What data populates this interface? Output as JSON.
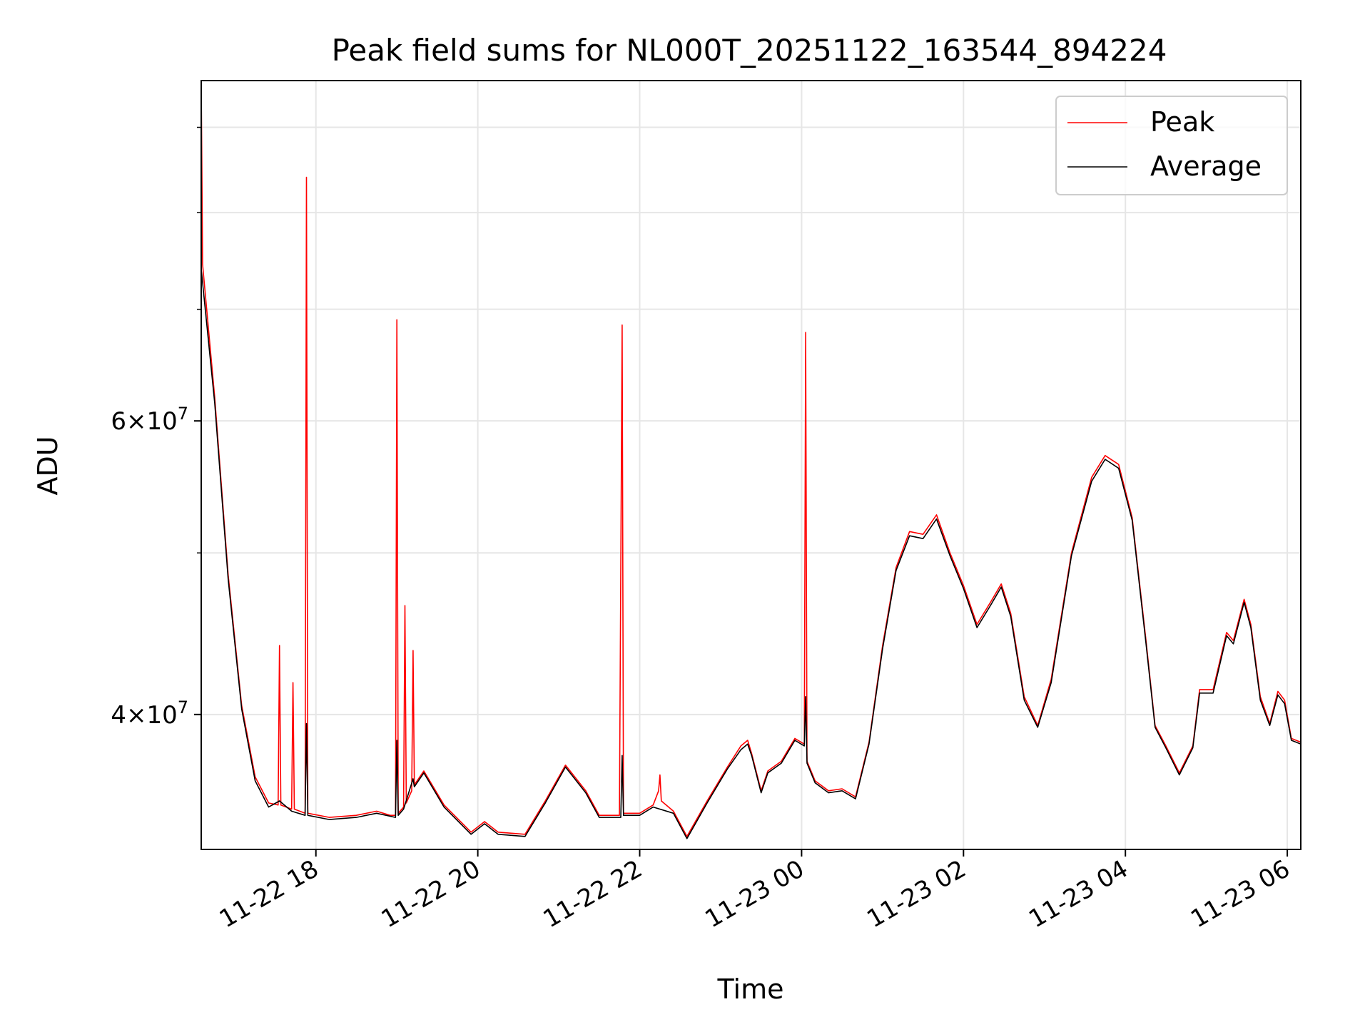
{
  "chart_data": {
    "type": "line",
    "title": "Peak field sums for NL000T_20251122_163544_894224",
    "xlabel": "Time",
    "ylabel": "ADU",
    "y_scale": "log",
    "ylim": [
      33200000,
      96000000
    ],
    "y_major_ticks": [
      {
        "value": 40000000,
        "mantissa": "4",
        "exponent": "7"
      },
      {
        "value": 60000000,
        "mantissa": "6",
        "exponent": "7"
      }
    ],
    "y_minor_ticks": [
      30000000,
      50000000,
      70000000,
      80000000,
      90000000
    ],
    "xlim": [
      "2025-11-22 16:35",
      "2025-11-23 06:10"
    ],
    "x_ticks": [
      {
        "value": "2025-11-22 18:00",
        "label": "11-22 18"
      },
      {
        "value": "2025-11-22 20:00",
        "label": "11-22 20"
      },
      {
        "value": "2025-11-22 22:00",
        "label": "11-22 22"
      },
      {
        "value": "2025-11-23 00:00",
        "label": "11-23 00"
      },
      {
        "value": "2025-11-23 02:00",
        "label": "11-23 02"
      },
      {
        "value": "2025-11-23 04:00",
        "label": "11-23 04"
      },
      {
        "value": "2025-11-23 06:00",
        "label": "11-23 06"
      }
    ],
    "grid": true,
    "legend_position": "top-right",
    "series": [
      {
        "name": "Peak",
        "color": "#ff0000",
        "points": [
          [
            "2025-11-22 16:35",
            96000000
          ],
          [
            "2025-11-22 16:36",
            74500000
          ],
          [
            "2025-11-22 16:45",
            62000000
          ],
          [
            "2025-11-22 16:55",
            48500000
          ],
          [
            "2025-11-22 17:05",
            40500000
          ],
          [
            "2025-11-22 17:15",
            36700000
          ],
          [
            "2025-11-22 17:25",
            35400000
          ],
          [
            "2025-11-22 17:32",
            35300000
          ],
          [
            "2025-11-22 17:33",
            44000000
          ],
          [
            "2025-11-22 17:34",
            35300000
          ],
          [
            "2025-11-22 17:42",
            35100000
          ],
          [
            "2025-11-22 17:43",
            41800000
          ],
          [
            "2025-11-22 17:44",
            35100000
          ],
          [
            "2025-11-22 17:52",
            34900000
          ],
          [
            "2025-11-22 17:53",
            84000000
          ],
          [
            "2025-11-22 17:54",
            34900000
          ],
          [
            "2025-11-22 18:10",
            34700000
          ],
          [
            "2025-11-22 18:30",
            34800000
          ],
          [
            "2025-11-22 18:45",
            35000000
          ],
          [
            "2025-11-22 18:55",
            34800000
          ],
          [
            "2025-11-22 18:59",
            34800000
          ],
          [
            "2025-11-22 19:00",
            69000000
          ],
          [
            "2025-11-22 19:01",
            34900000
          ],
          [
            "2025-11-22 19:05",
            35200000
          ],
          [
            "2025-11-22 19:06",
            46500000
          ],
          [
            "2025-11-22 19:07",
            35400000
          ],
          [
            "2025-11-22 19:11",
            36000000
          ],
          [
            "2025-11-22 19:12",
            43700000
          ],
          [
            "2025-11-22 19:13",
            36300000
          ],
          [
            "2025-11-22 19:20",
            37000000
          ],
          [
            "2025-11-22 19:35",
            35300000
          ],
          [
            "2025-11-22 19:55",
            34000000
          ],
          [
            "2025-11-22 20:05",
            34500000
          ],
          [
            "2025-11-22 20:15",
            34000000
          ],
          [
            "2025-11-22 20:35",
            33900000
          ],
          [
            "2025-11-22 20:50",
            35500000
          ],
          [
            "2025-11-22 21:05",
            37300000
          ],
          [
            "2025-11-22 21:20",
            36000000
          ],
          [
            "2025-11-22 21:30",
            34800000
          ],
          [
            "2025-11-22 21:45",
            34800000
          ],
          [
            "2025-11-22 21:47",
            68500000
          ],
          [
            "2025-11-22 21:48",
            34900000
          ],
          [
            "2025-11-22 22:00",
            34900000
          ],
          [
            "2025-11-22 22:10",
            35300000
          ],
          [
            "2025-11-22 22:14",
            36000000
          ],
          [
            "2025-11-22 22:15",
            36800000
          ],
          [
            "2025-11-22 22:16",
            35500000
          ],
          [
            "2025-11-22 22:25",
            35000000
          ],
          [
            "2025-11-22 22:35",
            33800000
          ],
          [
            "2025-11-22 22:50",
            35500000
          ],
          [
            "2025-11-22 23:05",
            37200000
          ],
          [
            "2025-11-22 23:15",
            38300000
          ],
          [
            "2025-11-22 23:20",
            38600000
          ],
          [
            "2025-11-22 23:23",
            37900000
          ],
          [
            "2025-11-22 23:30",
            36000000
          ],
          [
            "2025-11-22 23:35",
            37000000
          ],
          [
            "2025-11-22 23:45",
            37500000
          ],
          [
            "2025-11-22 23:55",
            38700000
          ],
          [
            "2025-11-23 00:02",
            38400000
          ],
          [
            "2025-11-23 00:03",
            67800000
          ],
          [
            "2025-11-23 00:04",
            37500000
          ],
          [
            "2025-11-23 00:10",
            36500000
          ],
          [
            "2025-11-23 00:20",
            36000000
          ],
          [
            "2025-11-23 00:30",
            36100000
          ],
          [
            "2025-11-23 00:40",
            35700000
          ],
          [
            "2025-11-23 00:50",
            38500000
          ],
          [
            "2025-11-23 01:00",
            44000000
          ],
          [
            "2025-11-23 01:10",
            49000000
          ],
          [
            "2025-11-23 01:20",
            51500000
          ],
          [
            "2025-11-23 01:30",
            51300000
          ],
          [
            "2025-11-23 01:40",
            52700000
          ],
          [
            "2025-11-23 01:50",
            50000000
          ],
          [
            "2025-11-23 02:00",
            47800000
          ],
          [
            "2025-11-23 02:10",
            45300000
          ],
          [
            "2025-11-23 02:20",
            46700000
          ],
          [
            "2025-11-23 02:28",
            47900000
          ],
          [
            "2025-11-23 02:35",
            46000000
          ],
          [
            "2025-11-23 02:45",
            41000000
          ],
          [
            "2025-11-23 02:55",
            39400000
          ],
          [
            "2025-11-23 03:05",
            42000000
          ],
          [
            "2025-11-23 03:20",
            50000000
          ],
          [
            "2025-11-23 03:35",
            55500000
          ],
          [
            "2025-11-23 03:45",
            57200000
          ],
          [
            "2025-11-23 03:55",
            56500000
          ],
          [
            "2025-11-23 04:05",
            52500000
          ],
          [
            "2025-11-23 04:15",
            44500000
          ],
          [
            "2025-11-23 04:22",
            39400000
          ],
          [
            "2025-11-23 04:30",
            38300000
          ],
          [
            "2025-11-23 04:40",
            36900000
          ],
          [
            "2025-11-23 04:50",
            38300000
          ],
          [
            "2025-11-23 04:55",
            41400000
          ],
          [
            "2025-11-23 05:05",
            41400000
          ],
          [
            "2025-11-23 05:15",
            44800000
          ],
          [
            "2025-11-23 05:20",
            44300000
          ],
          [
            "2025-11-23 05:28",
            46900000
          ],
          [
            "2025-11-23 05:33",
            45300000
          ],
          [
            "2025-11-23 05:40",
            41000000
          ],
          [
            "2025-11-23 05:47",
            39500000
          ],
          [
            "2025-11-23 05:53",
            41300000
          ],
          [
            "2025-11-23 05:58",
            40800000
          ],
          [
            "2025-11-23 06:03",
            38700000
          ],
          [
            "2025-11-23 06:10",
            38500000
          ]
        ]
      },
      {
        "name": "Average",
        "color": "#000000",
        "points": [
          [
            "2025-11-22 16:35",
            74000000
          ],
          [
            "2025-11-22 16:45",
            61500000
          ],
          [
            "2025-11-22 16:55",
            48200000
          ],
          [
            "2025-11-22 17:05",
            40300000
          ],
          [
            "2025-11-22 17:15",
            36500000
          ],
          [
            "2025-11-22 17:25",
            35200000
          ],
          [
            "2025-11-22 17:33",
            35500000
          ],
          [
            "2025-11-22 17:42",
            35000000
          ],
          [
            "2025-11-22 17:52",
            34800000
          ],
          [
            "2025-11-22 17:53",
            39500000
          ],
          [
            "2025-11-22 17:54",
            34800000
          ],
          [
            "2025-11-22 18:10",
            34600000
          ],
          [
            "2025-11-22 18:30",
            34700000
          ],
          [
            "2025-11-22 18:45",
            34900000
          ],
          [
            "2025-11-22 18:59",
            34700000
          ],
          [
            "2025-11-22 19:00",
            38600000
          ],
          [
            "2025-11-22 19:01",
            34800000
          ],
          [
            "2025-11-22 19:05",
            35100000
          ],
          [
            "2025-11-22 19:12",
            36600000
          ],
          [
            "2025-11-22 19:13",
            36200000
          ],
          [
            "2025-11-22 19:20",
            36900000
          ],
          [
            "2025-11-22 19:35",
            35200000
          ],
          [
            "2025-11-22 19:55",
            33900000
          ],
          [
            "2025-11-22 20:05",
            34400000
          ],
          [
            "2025-11-22 20:15",
            33900000
          ],
          [
            "2025-11-22 20:35",
            33800000
          ],
          [
            "2025-11-22 20:50",
            35400000
          ],
          [
            "2025-11-22 21:05",
            37200000
          ],
          [
            "2025-11-22 21:20",
            35900000
          ],
          [
            "2025-11-22 21:30",
            34700000
          ],
          [
            "2025-11-22 21:46",
            34700000
          ],
          [
            "2025-11-22 21:47",
            37800000
          ],
          [
            "2025-11-22 21:48",
            34800000
          ],
          [
            "2025-11-22 22:00",
            34800000
          ],
          [
            "2025-11-22 22:10",
            35200000
          ],
          [
            "2025-11-22 22:25",
            34900000
          ],
          [
            "2025-11-22 22:35",
            33700000
          ],
          [
            "2025-11-22 22:50",
            35400000
          ],
          [
            "2025-11-22 23:05",
            37100000
          ],
          [
            "2025-11-22 23:15",
            38100000
          ],
          [
            "2025-11-22 23:20",
            38400000
          ],
          [
            "2025-11-22 23:23",
            37800000
          ],
          [
            "2025-11-22 23:30",
            35900000
          ],
          [
            "2025-11-22 23:35",
            36900000
          ],
          [
            "2025-11-22 23:45",
            37400000
          ],
          [
            "2025-11-22 23:55",
            38600000
          ],
          [
            "2025-11-23 00:02",
            38300000
          ],
          [
            "2025-11-23 00:03",
            41000000
          ],
          [
            "2025-11-23 00:04",
            37400000
          ],
          [
            "2025-11-23 00:10",
            36400000
          ],
          [
            "2025-11-23 00:20",
            35900000
          ],
          [
            "2025-11-23 00:30",
            36000000
          ],
          [
            "2025-11-23 00:40",
            35600000
          ],
          [
            "2025-11-23 00:50",
            38400000
          ],
          [
            "2025-11-23 01:00",
            43800000
          ],
          [
            "2025-11-23 01:10",
            48800000
          ],
          [
            "2025-11-23 01:20",
            51200000
          ],
          [
            "2025-11-23 01:30",
            51000000
          ],
          [
            "2025-11-23 01:40",
            52400000
          ],
          [
            "2025-11-23 01:50",
            49800000
          ],
          [
            "2025-11-23 02:00",
            47600000
          ],
          [
            "2025-11-23 02:10",
            45100000
          ],
          [
            "2025-11-23 02:20",
            46500000
          ],
          [
            "2025-11-23 02:28",
            47700000
          ],
          [
            "2025-11-23 02:35",
            45800000
          ],
          [
            "2025-11-23 02:45",
            40800000
          ],
          [
            "2025-11-23 02:55",
            39300000
          ],
          [
            "2025-11-23 03:05",
            41800000
          ],
          [
            "2025-11-23 03:20",
            49800000
          ],
          [
            "2025-11-23 03:35",
            55200000
          ],
          [
            "2025-11-23 03:45",
            56900000
          ],
          [
            "2025-11-23 03:55",
            56200000
          ],
          [
            "2025-11-23 04:05",
            52300000
          ],
          [
            "2025-11-23 04:15",
            44300000
          ],
          [
            "2025-11-23 04:22",
            39300000
          ],
          [
            "2025-11-23 04:30",
            38200000
          ],
          [
            "2025-11-23 04:40",
            36800000
          ],
          [
            "2025-11-23 04:50",
            38200000
          ],
          [
            "2025-11-23 04:55",
            41200000
          ],
          [
            "2025-11-23 05:05",
            41200000
          ],
          [
            "2025-11-23 05:15",
            44600000
          ],
          [
            "2025-11-23 05:20",
            44100000
          ],
          [
            "2025-11-23 05:28",
            46700000
          ],
          [
            "2025-11-23 05:33",
            45100000
          ],
          [
            "2025-11-23 05:40",
            40800000
          ],
          [
            "2025-11-23 05:47",
            39400000
          ],
          [
            "2025-11-23 05:53",
            41100000
          ],
          [
            "2025-11-23 05:58",
            40600000
          ],
          [
            "2025-11-23 06:03",
            38600000
          ],
          [
            "2025-11-23 06:10",
            38400000
          ]
        ]
      }
    ]
  }
}
